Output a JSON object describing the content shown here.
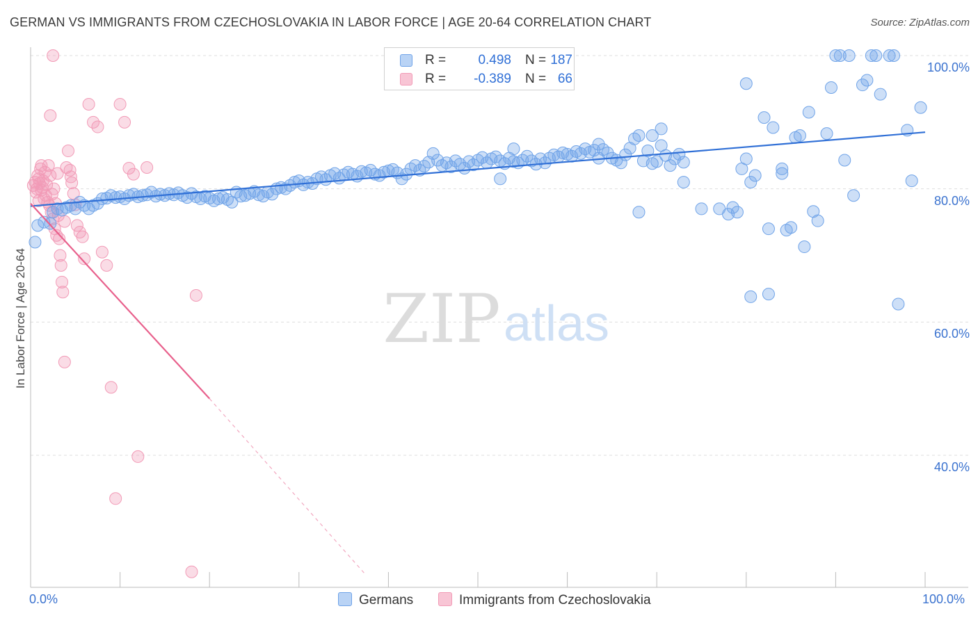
{
  "title": "GERMAN VS IMMIGRANTS FROM CZECHOSLOVAKIA IN LABOR FORCE | AGE 20-64 CORRELATION CHART",
  "source": "Source: ZipAtlas.com",
  "watermark": {
    "zip": "ZIP",
    "atlas": "atlas"
  },
  "legend": {
    "rows": [
      {
        "r_label": "R =",
        "r_value": "0.498",
        "n_label": "N =",
        "n_value": "187"
      },
      {
        "r_label": "R =",
        "r_value": "-0.389",
        "n_label": "N =",
        "n_value": "66"
      }
    ]
  },
  "chart_data": {
    "type": "scatter",
    "ylabel": "In Labor Force | Age 20-64",
    "xlim": [
      0,
      100
    ],
    "ylim": [
      22,
      102
    ],
    "x_tick_labels": [
      "0.0%",
      "100.0%"
    ],
    "y_ticks": [
      {
        "value": 100,
        "label": "100.0%"
      },
      {
        "value": 80,
        "label": "80.0%"
      },
      {
        "value": 60,
        "label": "60.0%"
      },
      {
        "value": 40,
        "label": "40.0%"
      }
    ],
    "grid": "horizontal dashed",
    "legend_placement": "top-center",
    "colors": {
      "germans": "#6fa3e8",
      "germans_line": "#2f6fd6",
      "czech": "#f29ab6",
      "czech_line": "#e8608c"
    },
    "series": [
      {
        "name": "Germans",
        "trendline": {
          "x": [
            0,
            100
          ],
          "y": [
            77.4,
            88.5
          ]
        },
        "points": [
          [
            0.5,
            72
          ],
          [
            0.8,
            74.5
          ],
          [
            1.5,
            75
          ],
          [
            2.2,
            74.8
          ],
          [
            2.5,
            76.5
          ],
          [
            3,
            77
          ],
          [
            3.5,
            76.8
          ],
          [
            4,
            77.2
          ],
          [
            4.5,
            77.5
          ],
          [
            5,
            77
          ],
          [
            5.5,
            78
          ],
          [
            6,
            77.5
          ],
          [
            6.5,
            77
          ],
          [
            7,
            77.5
          ],
          [
            7.5,
            77.8
          ],
          [
            8,
            78.5
          ],
          [
            8.5,
            78.6
          ],
          [
            9,
            79
          ],
          [
            9.5,
            78.7
          ],
          [
            10,
            78.8
          ],
          [
            10.5,
            78.5
          ],
          [
            11,
            79
          ],
          [
            11.5,
            79.2
          ],
          [
            12,
            78.8
          ],
          [
            12.5,
            79
          ],
          [
            13,
            79.1
          ],
          [
            13.5,
            79.5
          ],
          [
            14,
            78.9
          ],
          [
            14.5,
            79.2
          ],
          [
            15,
            79
          ],
          [
            15.5,
            79.3
          ],
          [
            16,
            79.1
          ],
          [
            16.5,
            79.4
          ],
          [
            17,
            79
          ],
          [
            17.5,
            78.7
          ],
          [
            18,
            79.3
          ],
          [
            18.5,
            78.8
          ],
          [
            19,
            78.5
          ],
          [
            19.5,
            78.9
          ],
          [
            20,
            78.6
          ],
          [
            20.5,
            78.2
          ],
          [
            21,
            78.5
          ],
          [
            21.5,
            78.7
          ],
          [
            22,
            78.4
          ],
          [
            22.5,
            78
          ],
          [
            23,
            79.5
          ],
          [
            23.5,
            78.9
          ],
          [
            24,
            79
          ],
          [
            24.5,
            79.3
          ],
          [
            25,
            79.6
          ],
          [
            25.5,
            79.1
          ],
          [
            26,
            78.9
          ],
          [
            26.5,
            79.5
          ],
          [
            27,
            79.2
          ],
          [
            27.5,
            80
          ],
          [
            28,
            80.2
          ],
          [
            28.5,
            80
          ],
          [
            29,
            80.5
          ],
          [
            29.5,
            81
          ],
          [
            30,
            81.2
          ],
          [
            30.5,
            80.6
          ],
          [
            31,
            81
          ],
          [
            31.5,
            80.8
          ],
          [
            32,
            81.5
          ],
          [
            32.5,
            81.8
          ],
          [
            33,
            81.4
          ],
          [
            33.5,
            82
          ],
          [
            34,
            82.3
          ],
          [
            34.5,
            81.6
          ],
          [
            35,
            82.1
          ],
          [
            35.5,
            82.5
          ],
          [
            36,
            82.2
          ],
          [
            36.5,
            81.9
          ],
          [
            37,
            82.6
          ],
          [
            37.5,
            82.4
          ],
          [
            38,
            82.8
          ],
          [
            38.5,
            82.2
          ],
          [
            39,
            82
          ],
          [
            39.5,
            82.5
          ],
          [
            40,
            82.7
          ],
          [
            40.5,
            82.9
          ],
          [
            41,
            82.4
          ],
          [
            41.5,
            81.5
          ],
          [
            42,
            82.2
          ],
          [
            42.5,
            83
          ],
          [
            43,
            83.5
          ],
          [
            43.5,
            82.8
          ],
          [
            44,
            83.4
          ],
          [
            44.5,
            84
          ],
          [
            45,
            85.3
          ],
          [
            45.5,
            84.3
          ],
          [
            46,
            83.5
          ],
          [
            46.5,
            83.9
          ],
          [
            47,
            83.3
          ],
          [
            47.5,
            84.2
          ],
          [
            48,
            83.7
          ],
          [
            48.5,
            83.1
          ],
          [
            49,
            84.1
          ],
          [
            49.5,
            83.6
          ],
          [
            50,
            84.3
          ],
          [
            50.5,
            84.7
          ],
          [
            51,
            83.9
          ],
          [
            51.5,
            84.5
          ],
          [
            52,
            84.8
          ],
          [
            52.5,
            84.2
          ],
          [
            53,
            83.8
          ],
          [
            53.5,
            84.6
          ],
          [
            54,
            84.1
          ],
          [
            54.5,
            83.9
          ],
          [
            55,
            84.3
          ],
          [
            55.5,
            84.9
          ],
          [
            56,
            84.2
          ],
          [
            56.5,
            83.7
          ],
          [
            57,
            84.5
          ],
          [
            57.5,
            83.9
          ],
          [
            58,
            84.6
          ],
          [
            58.5,
            85.1
          ],
          [
            59,
            84.8
          ],
          [
            59.5,
            85.4
          ],
          [
            60,
            85.2
          ],
          [
            60.5,
            84.9
          ],
          [
            61,
            85.6
          ],
          [
            61.5,
            85.3
          ],
          [
            62,
            86
          ],
          [
            62.5,
            85.5
          ],
          [
            63,
            85.8
          ],
          [
            63.5,
            84.6
          ],
          [
            64,
            85.9
          ],
          [
            64.5,
            85.4
          ],
          [
            65,
            84.6
          ],
          [
            65.5,
            84.3
          ],
          [
            66,
            83.9
          ],
          [
            66.5,
            85.1
          ],
          [
            67,
            86.1
          ],
          [
            67.5,
            87.5
          ],
          [
            68,
            88
          ],
          [
            68.5,
            84.2
          ],
          [
            69,
            85.7
          ],
          [
            69.5,
            83.8
          ],
          [
            70,
            84.1
          ],
          [
            70.5,
            86.5
          ],
          [
            71,
            85
          ],
          [
            71.5,
            83.5
          ],
          [
            72,
            84.5
          ],
          [
            72.5,
            85.2
          ],
          [
            73,
            84
          ],
          [
            52.5,
            81.5
          ],
          [
            54,
            86
          ],
          [
            63.5,
            86.7
          ],
          [
            68,
            76.5
          ],
          [
            69.5,
            88
          ],
          [
            70.5,
            89
          ],
          [
            73,
            81
          ],
          [
            75,
            77
          ],
          [
            77,
            77
          ],
          [
            78,
            76.2
          ],
          [
            78.5,
            77.2
          ],
          [
            79,
            76.5
          ],
          [
            80,
            95.8
          ],
          [
            80.5,
            81
          ],
          [
            81,
            82
          ],
          [
            82,
            90.7
          ],
          [
            82.5,
            74
          ],
          [
            83,
            89.2
          ],
          [
            84,
            82.3
          ],
          [
            84.5,
            73.8
          ],
          [
            85,
            74.2
          ],
          [
            85.5,
            87.7
          ],
          [
            86,
            88
          ],
          [
            86.5,
            71.3
          ],
          [
            87,
            91.5
          ],
          [
            87.5,
            76.6
          ],
          [
            88,
            75.2
          ],
          [
            89,
            88.3
          ],
          [
            89.5,
            95.2
          ],
          [
            90,
            100
          ],
          [
            90.5,
            100
          ],
          [
            91,
            84.3
          ],
          [
            91.5,
            100
          ],
          [
            92,
            79
          ],
          [
            93,
            95.6
          ],
          [
            93.5,
            96.3
          ],
          [
            94,
            100
          ],
          [
            94.5,
            100
          ],
          [
            95,
            94.2
          ],
          [
            96,
            100
          ],
          [
            96.5,
            100
          ],
          [
            97,
            62.7
          ],
          [
            98,
            88.8
          ],
          [
            98.5,
            81.2
          ],
          [
            99.5,
            92.2
          ],
          [
            80.5,
            63.8
          ],
          [
            82.5,
            64.2
          ],
          [
            79.5,
            83
          ],
          [
            80,
            84.5
          ],
          [
            84,
            83
          ]
        ]
      },
      {
        "name": "Immigrants from Czechoslovakia",
        "trendline": {
          "x": [
            0,
            20,
            37.5
          ],
          "y": [
            77.8,
            48.5,
            22
          ],
          "solid_until_x": 20
        },
        "points": [
          [
            0.3,
            80.5
          ],
          [
            0.5,
            81
          ],
          [
            0.6,
            79.5
          ],
          [
            0.7,
            80
          ],
          [
            0.8,
            82
          ],
          [
            0.9,
            81.5
          ],
          [
            1,
            80.8
          ],
          [
            1.1,
            83
          ],
          [
            1.2,
            79.8
          ],
          [
            1.3,
            80.2
          ],
          [
            1.4,
            81.2
          ],
          [
            1.5,
            78.5
          ],
          [
            1.6,
            82.5
          ],
          [
            1.7,
            79
          ],
          [
            1.8,
            80.6
          ],
          [
            1.9,
            78
          ],
          [
            2,
            83.5
          ],
          [
            2.1,
            77.5
          ],
          [
            2.2,
            82
          ],
          [
            2.3,
            76.5
          ],
          [
            2.4,
            79.2
          ],
          [
            2.5,
            75.5
          ],
          [
            2.6,
            80
          ],
          [
            2.7,
            74
          ],
          [
            2.8,
            77.8
          ],
          [
            2.9,
            73
          ],
          [
            3,
            82.3
          ],
          [
            3.1,
            76
          ],
          [
            3.2,
            72.5
          ],
          [
            3.3,
            70
          ],
          [
            3.4,
            68.5
          ],
          [
            3.5,
            66
          ],
          [
            3.6,
            64.5
          ],
          [
            3.8,
            54
          ],
          [
            4,
            83.2
          ],
          [
            4.2,
            85.7
          ],
          [
            4.4,
            82.8
          ],
          [
            4.6,
            80.9
          ],
          [
            4.8,
            79.3
          ],
          [
            5,
            77.6
          ],
          [
            5.2,
            74.5
          ],
          [
            5.5,
            73.5
          ],
          [
            5.8,
            72.8
          ],
          [
            6,
            69.5
          ],
          [
            6.5,
            92.7
          ],
          [
            7,
            90
          ],
          [
            7.5,
            89.3
          ],
          [
            8,
            70.5
          ],
          [
            8.5,
            68.5
          ],
          [
            9,
            50.2
          ],
          [
            9.5,
            33.5
          ],
          [
            10,
            92.7
          ],
          [
            10.5,
            90
          ],
          [
            11,
            83.1
          ],
          [
            11.5,
            82.2
          ],
          [
            12,
            39.8
          ],
          [
            13,
            83.2
          ],
          [
            18,
            22.5
          ],
          [
            18.5,
            64
          ],
          [
            2.2,
            91
          ],
          [
            2.5,
            100
          ],
          [
            3.8,
            75.1
          ],
          [
            4.5,
            81.8
          ],
          [
            1.2,
            83.5
          ],
          [
            0.9,
            78.2
          ]
        ]
      }
    ]
  }
}
